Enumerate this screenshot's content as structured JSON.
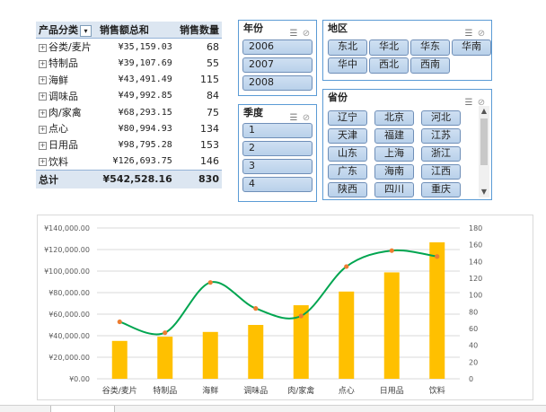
{
  "pivot": {
    "headers": {
      "category": "产品分类",
      "amount": "销售额总和",
      "qty": "销售数量"
    },
    "rows": [
      {
        "category": "谷类/麦片",
        "amount": "¥35,159.03",
        "qty": "68"
      },
      {
        "category": "特制品",
        "amount": "¥39,107.69",
        "qty": "55"
      },
      {
        "category": "海鲜",
        "amount": "¥43,491.49",
        "qty": "115"
      },
      {
        "category": "调味品",
        "amount": "¥49,992.85",
        "qty": "84"
      },
      {
        "category": "肉/家禽",
        "amount": "¥68,293.15",
        "qty": "75"
      },
      {
        "category": "点心",
        "amount": "¥80,994.93",
        "qty": "134"
      },
      {
        "category": "日用品",
        "amount": "¥98,795.28",
        "qty": "153"
      },
      {
        "category": "饮料",
        "amount": "¥126,693.75",
        "qty": "146"
      }
    ],
    "total": {
      "label": "总计",
      "amount": "¥542,528.16",
      "qty": "830"
    }
  },
  "slicers": {
    "year": {
      "title": "年份",
      "items": [
        "2006",
        "2007",
        "2008"
      ]
    },
    "quarter": {
      "title": "季度",
      "items": [
        "1",
        "2",
        "3",
        "4"
      ]
    },
    "region": {
      "title": "地区",
      "items": [
        "东北",
        "华北",
        "华东",
        "华南",
        "华中",
        "西北",
        "西南"
      ]
    },
    "province": {
      "title": "省份",
      "items": [
        "辽宁",
        "北京",
        "河北",
        "天津",
        "福建",
        "江苏",
        "山东",
        "上海",
        "浙江",
        "广东",
        "海南",
        "江西",
        "陕西",
        "四川",
        "重庆"
      ]
    }
  },
  "chart_data": {
    "type": "bar",
    "categories": [
      "谷类/麦片",
      "特制品",
      "海鲜",
      "调味品",
      "肉/家禽",
      "点心",
      "日用品",
      "饮料"
    ],
    "series": [
      {
        "type": "bar",
        "axis": "left",
        "color": "#ffc000",
        "values": [
          35159.03,
          39107.69,
          43491.49,
          49992.85,
          68293.15,
          80994.93,
          98795.28,
          126693.75
        ]
      },
      {
        "type": "line",
        "axis": "right",
        "smooth": true,
        "color": "#00a550",
        "marker_color": "#ed7d31",
        "values": [
          68,
          55,
          115,
          84,
          75,
          134,
          153,
          146
        ]
      }
    ],
    "y_left": {
      "min": 0,
      "max": 140000,
      "step": 20000,
      "tick_labels": [
        "¥0.00",
        "¥20,000.00",
        "¥40,000.00",
        "¥60,000.00",
        "¥80,000.00",
        "¥100,000.00",
        "¥120,000.00",
        "¥140,000.00"
      ]
    },
    "y_right": {
      "min": 0,
      "max": 180,
      "step": 20,
      "tick_labels": [
        "0",
        "20",
        "40",
        "60",
        "80",
        "100",
        "120",
        "140",
        "160",
        "180"
      ]
    },
    "grid": true,
    "legend": "none"
  },
  "icons": {
    "multiselect": "multi-select-icon",
    "clear": "clear-filter-icon",
    "expand": "expand-icon",
    "dropdown": "filter-dropdown-icon"
  }
}
